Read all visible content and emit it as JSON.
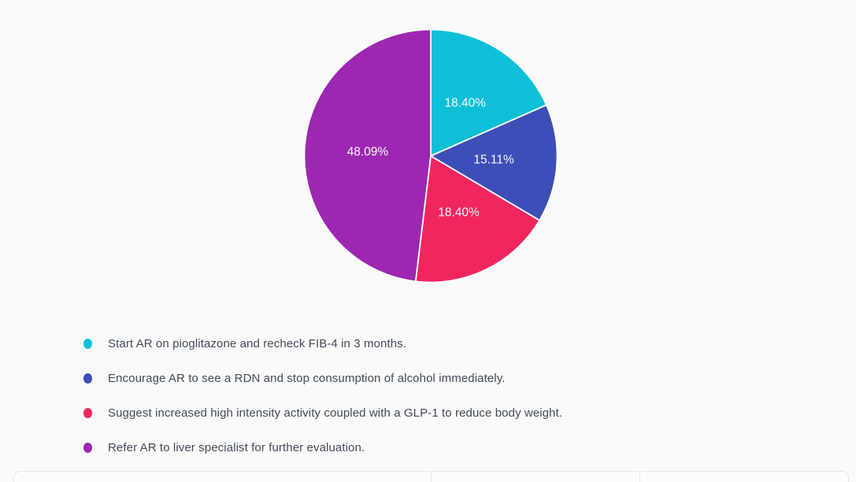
{
  "page": {
    "background_color": "#fafafa"
  },
  "chart_data": {
    "type": "pie",
    "title": "",
    "start_angle_deg": 0,
    "direction": "clockwise",
    "legend_position": "bottom-left",
    "slice_label_color": "#f8f9fb",
    "slice_border_color": "#ffffff",
    "slices": [
      {
        "label": "Start AR on pioglitazone and recheck FIB-4 in 3 months.",
        "value": 18.4,
        "display": "18.40%",
        "color": "#0dc0d8"
      },
      {
        "label": "Encourage AR to see a RDN and stop consumption of alcohol immediately.",
        "value": 15.11,
        "display": "15.11%",
        "color": "#3d4eb8"
      },
      {
        "label": "Suggest increased high intensity activity coupled with a GLP-1 to reduce body weight.",
        "value": 18.4,
        "display": "18.40%",
        "color": "#f1265f"
      },
      {
        "label": "Refer AR to liver specialist for further evaluation.",
        "value": 48.09,
        "display": "48.09%",
        "color": "#9c28b1"
      }
    ]
  },
  "legend": {
    "text_color": "#414c59"
  }
}
